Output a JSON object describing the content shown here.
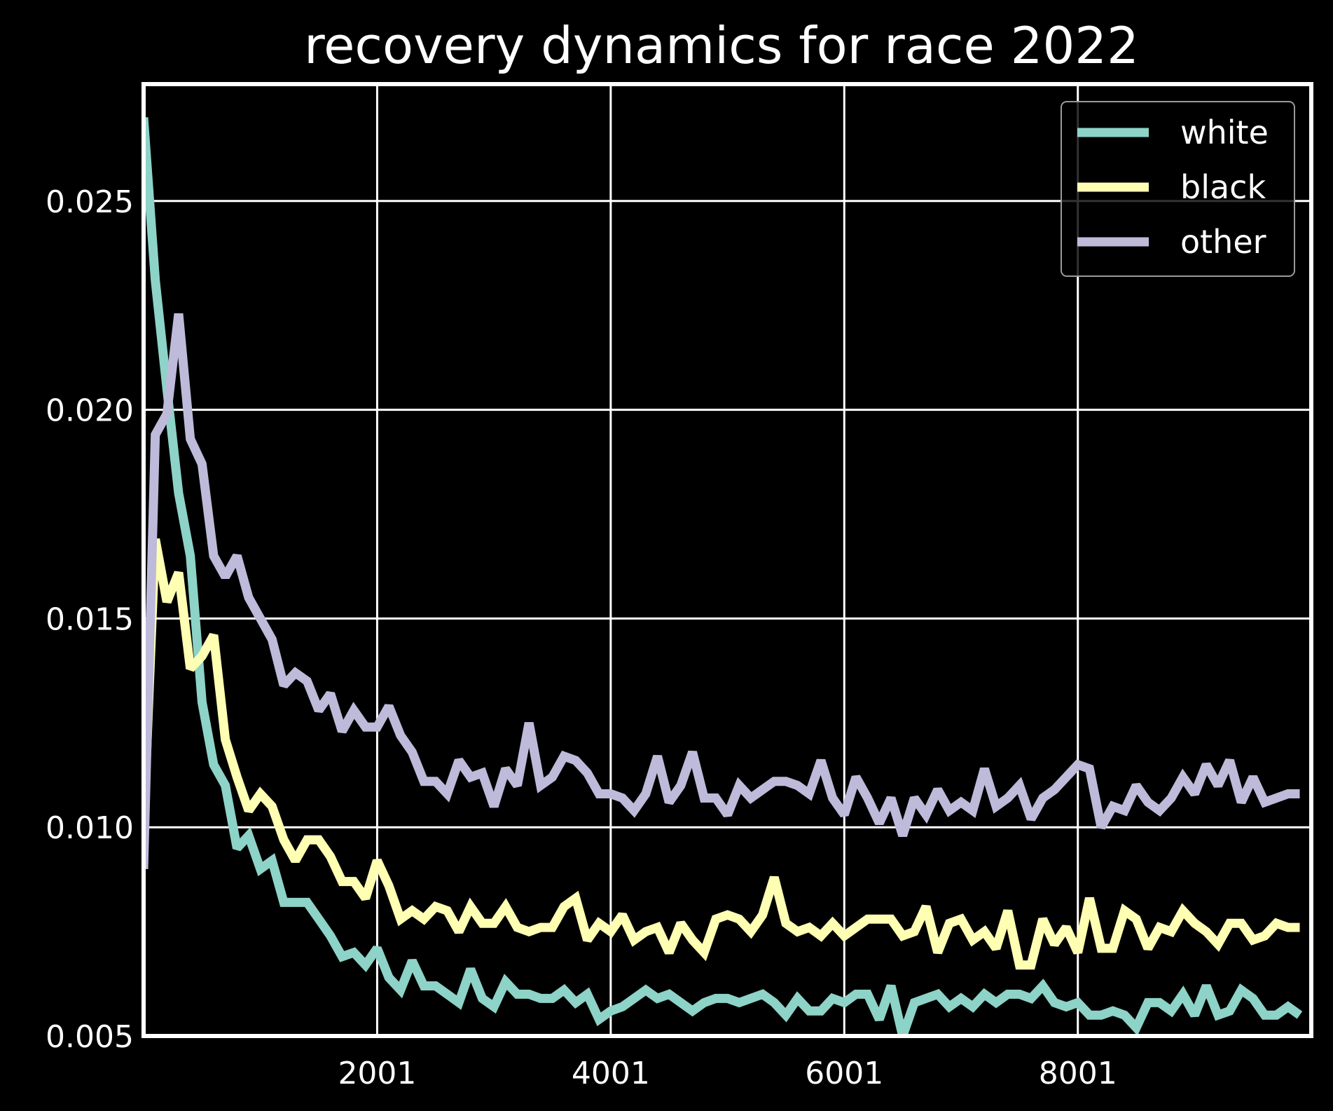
{
  "chart_data": {
    "type": "line",
    "title": "recovery dynamics for race 2022",
    "xlabel": "",
    "ylabel": "",
    "xlim": [
      1,
      10000
    ],
    "ylim": [
      0.005,
      0.0278
    ],
    "xticks": [
      2001,
      4001,
      6001,
      8001
    ],
    "xtick_labels": [
      "2001",
      "4001",
      "6001",
      "8001"
    ],
    "yticks": [
      0.005,
      0.01,
      0.015,
      0.02,
      0.025
    ],
    "ytick_labels": [
      "0.005",
      "0.010",
      "0.015",
      "0.020",
      "0.025"
    ],
    "grid": true,
    "legend_position": "top-right",
    "x": [
      1,
      101,
      201,
      301,
      401,
      501,
      601,
      701,
      801,
      901,
      1001,
      1101,
      1201,
      1301,
      1401,
      1501,
      1601,
      1701,
      1801,
      1901,
      2001,
      2101,
      2201,
      2301,
      2401,
      2501,
      2601,
      2701,
      2801,
      2901,
      3001,
      3101,
      3201,
      3301,
      3401,
      3501,
      3601,
      3701,
      3801,
      3901,
      4001,
      4101,
      4201,
      4301,
      4401,
      4501,
      4601,
      4701,
      4801,
      4901,
      5001,
      5101,
      5201,
      5301,
      5401,
      5501,
      5601,
      5701,
      5801,
      5901,
      6001,
      6101,
      6201,
      6301,
      6401,
      6501,
      6601,
      6701,
      6801,
      6901,
      7001,
      7101,
      7201,
      7301,
      7401,
      7501,
      7601,
      7701,
      7801,
      7901,
      8001,
      8101,
      8201,
      8301,
      8401,
      8501,
      8601,
      8701,
      8801,
      8901,
      9001,
      9101,
      9201,
      9301,
      9401,
      9501,
      9601,
      9701,
      9801,
      9901
    ],
    "series": [
      {
        "name": "white",
        "color": "#8dd3c7",
        "values": [
          0.027,
          0.0231,
          0.0205,
          0.018,
          0.0165,
          0.013,
          0.0115,
          0.011,
          0.0095,
          0.0098,
          0.009,
          0.0092,
          0.0082,
          0.0082,
          0.0082,
          0.0078,
          0.0074,
          0.0069,
          0.007,
          0.0067,
          0.0071,
          0.0064,
          0.0061,
          0.0068,
          0.0062,
          0.0062,
          0.006,
          0.0058,
          0.0066,
          0.0059,
          0.0057,
          0.0063,
          0.006,
          0.006,
          0.0059,
          0.0059,
          0.0061,
          0.0058,
          0.006,
          0.0054,
          0.0056,
          0.0057,
          0.0059,
          0.0061,
          0.0059,
          0.006,
          0.0058,
          0.0056,
          0.0058,
          0.0059,
          0.0059,
          0.0058,
          0.0059,
          0.006,
          0.0058,
          0.0055,
          0.0059,
          0.0056,
          0.0056,
          0.0059,
          0.0058,
          0.006,
          0.006,
          0.0054,
          0.0062,
          0.005,
          0.0058,
          0.0059,
          0.006,
          0.0057,
          0.0059,
          0.0057,
          0.006,
          0.0058,
          0.006,
          0.006,
          0.0059,
          0.0062,
          0.0058,
          0.0057,
          0.0058,
          0.0055,
          0.0055,
          0.0056,
          0.0055,
          0.0052,
          0.0058,
          0.0058,
          0.0056,
          0.006,
          0.0055,
          0.0062,
          0.0055,
          0.0056,
          0.0061,
          0.0059,
          0.0055,
          0.0055,
          0.0057,
          0.0055
        ]
      },
      {
        "name": "black",
        "color": "#ffffb3",
        "values": [
          0.01,
          0.0169,
          0.0154,
          0.0161,
          0.0138,
          0.0141,
          0.0146,
          0.0121,
          0.0112,
          0.0104,
          0.0108,
          0.0105,
          0.0097,
          0.0092,
          0.0097,
          0.0097,
          0.0093,
          0.0087,
          0.0087,
          0.0083,
          0.0092,
          0.0086,
          0.0078,
          0.008,
          0.0078,
          0.0081,
          0.008,
          0.0075,
          0.0081,
          0.0077,
          0.0077,
          0.0081,
          0.0076,
          0.0075,
          0.0076,
          0.0076,
          0.0081,
          0.0083,
          0.0073,
          0.0077,
          0.0075,
          0.0079,
          0.0073,
          0.0075,
          0.0076,
          0.007,
          0.0077,
          0.0073,
          0.007,
          0.0078,
          0.0079,
          0.0078,
          0.0075,
          0.0079,
          0.0088,
          0.0077,
          0.0075,
          0.0076,
          0.0074,
          0.0077,
          0.0074,
          0.0076,
          0.0078,
          0.0078,
          0.0078,
          0.0074,
          0.0075,
          0.0081,
          0.007,
          0.0077,
          0.0078,
          0.0073,
          0.0075,
          0.0071,
          0.008,
          0.0067,
          0.0067,
          0.0078,
          0.0072,
          0.0076,
          0.007,
          0.0083,
          0.0071,
          0.0071,
          0.008,
          0.0078,
          0.0071,
          0.0076,
          0.0075,
          0.008,
          0.0077,
          0.0075,
          0.0072,
          0.0077,
          0.0077,
          0.0073,
          0.0074,
          0.0077,
          0.0076,
          0.0076
        ]
      },
      {
        "name": "other",
        "color": "#bebada",
        "values": [
          0.009,
          0.0194,
          0.0199,
          0.0223,
          0.0193,
          0.0187,
          0.0165,
          0.016,
          0.0165,
          0.0155,
          0.015,
          0.0145,
          0.0134,
          0.0137,
          0.0135,
          0.0128,
          0.0132,
          0.0123,
          0.0128,
          0.0124,
          0.0124,
          0.0129,
          0.0122,
          0.0118,
          0.0111,
          0.0111,
          0.0108,
          0.0116,
          0.0112,
          0.0113,
          0.0105,
          0.0114,
          0.011,
          0.0125,
          0.011,
          0.0112,
          0.0117,
          0.0116,
          0.0113,
          0.0108,
          0.0108,
          0.0107,
          0.0104,
          0.0108,
          0.0117,
          0.0106,
          0.011,
          0.0118,
          0.0107,
          0.0107,
          0.0103,
          0.011,
          0.0107,
          0.0109,
          0.0111,
          0.0111,
          0.011,
          0.0108,
          0.0116,
          0.0107,
          0.0103,
          0.0112,
          0.0107,
          0.0101,
          0.0107,
          0.0098,
          0.0107,
          0.0103,
          0.0109,
          0.0104,
          0.0106,
          0.0104,
          0.0114,
          0.0105,
          0.0107,
          0.011,
          0.0102,
          0.0107,
          0.0109,
          0.0112,
          0.0115,
          0.0114,
          0.01,
          0.0105,
          0.0104,
          0.011,
          0.0106,
          0.0104,
          0.0107,
          0.0112,
          0.0108,
          0.0115,
          0.011,
          0.0116,
          0.0106,
          0.0112,
          0.0106,
          0.0107,
          0.0108,
          0.0108
        ]
      }
    ]
  }
}
